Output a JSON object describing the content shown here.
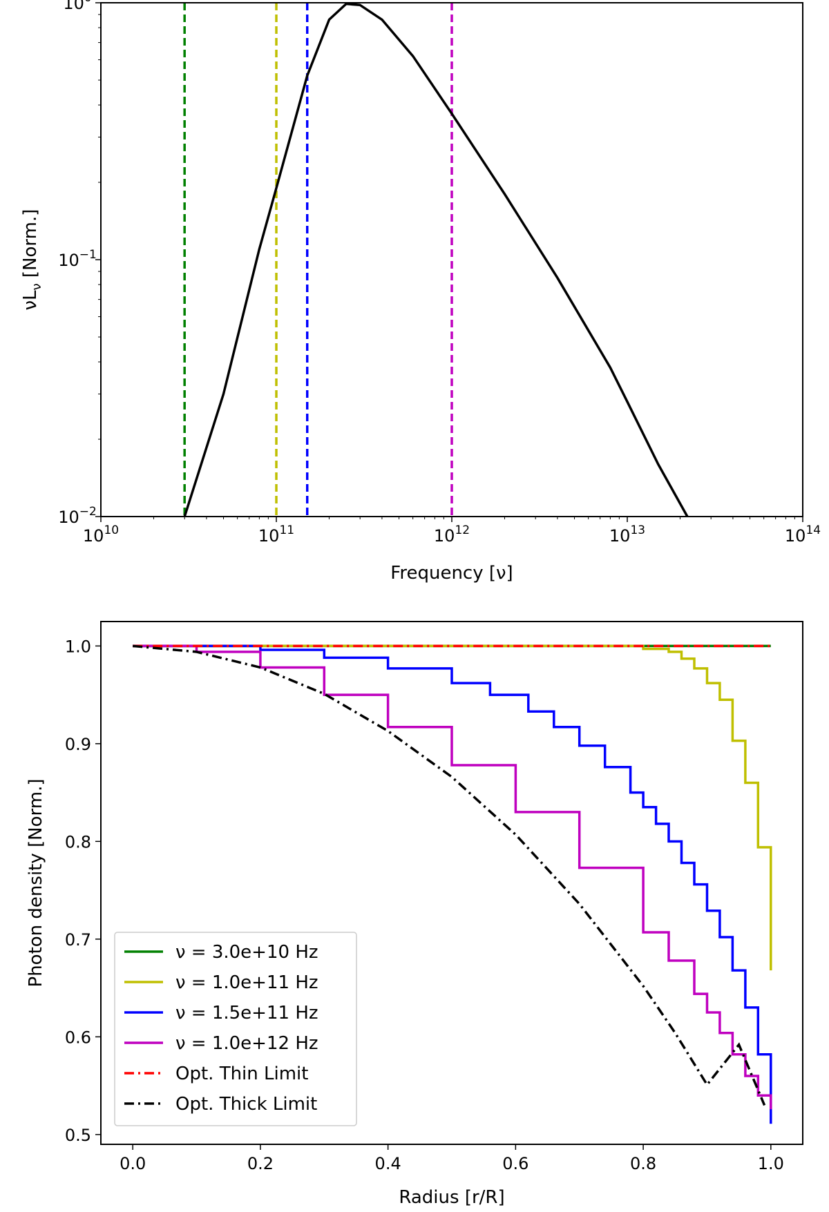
{
  "chart_data": [
    {
      "type": "line",
      "xlabel": "Frequency [ν]",
      "ylabel_prefix": "νL",
      "ylabel_sub": "ν",
      "ylabel_suffix": " [Norm.]",
      "xscale": "log",
      "yscale": "log",
      "xlim": [
        10000000000.0,
        100000000000000.0
      ],
      "ylim": [
        0.01,
        1.0
      ],
      "x_ticks": [
        {
          "value": 10000000000.0,
          "base": "10",
          "exp": "10"
        },
        {
          "value": 100000000000.0,
          "base": "10",
          "exp": "11"
        },
        {
          "value": 1000000000000.0,
          "base": "10",
          "exp": "12"
        },
        {
          "value": 10000000000000.0,
          "base": "10",
          "exp": "13"
        },
        {
          "value": 100000000000000.0,
          "base": "10",
          "exp": "14"
        }
      ],
      "y_ticks": [
        {
          "value": 0.01,
          "base": "10",
          "exp": "−2"
        },
        {
          "value": 0.1,
          "base": "10",
          "exp": "−1"
        },
        {
          "value": 1.0,
          "base": "10",
          "exp": "0"
        }
      ],
      "spectrum": {
        "color": "#000000",
        "x": [
          30000000000.0,
          50000000000.0,
          80000000000.0,
          100000000000.0,
          150000000000.0,
          200000000000.0,
          250000000000.0,
          300000000000.0,
          400000000000.0,
          600000000000.0,
          1000000000000.0,
          2000000000000.0,
          4000000000000.0,
          8000000000000.0,
          10000000000000.0,
          15000000000000.0,
          22000000000000.0
        ],
        "y": [
          0.01,
          0.03,
          0.11,
          0.19,
          0.52,
          0.86,
          0.99,
          0.98,
          0.86,
          0.62,
          0.37,
          0.18,
          0.085,
          0.038,
          0.028,
          0.016,
          0.01
        ]
      },
      "vlines": [
        {
          "x": 30000000000.0,
          "color": "#008000"
        },
        {
          "x": 100000000000.0,
          "color": "#bfbf00"
        },
        {
          "x": 150000000000.0,
          "color": "#0000ff"
        },
        {
          "x": 1000000000000.0,
          "color": "#bf00bf"
        }
      ]
    },
    {
      "type": "line",
      "xlabel": "Radius [r/R]",
      "ylabel": "Photon density [Norm.]",
      "xlim": [
        -0.05,
        1.05
      ],
      "ylim": [
        0.49,
        1.025
      ],
      "x_ticks": [
        {
          "value": 0.0,
          "label": "0.0"
        },
        {
          "value": 0.2,
          "label": "0.2"
        },
        {
          "value": 0.4,
          "label": "0.4"
        },
        {
          "value": 0.6,
          "label": "0.6"
        },
        {
          "value": 0.8,
          "label": "0.8"
        },
        {
          "value": 1.0,
          "label": "1.0"
        }
      ],
      "y_ticks": [
        {
          "value": 0.5,
          "label": "0.5"
        },
        {
          "value": 0.6,
          "label": "0.6"
        },
        {
          "value": 0.7,
          "label": "0.7"
        },
        {
          "value": 0.8,
          "label": "0.8"
        },
        {
          "value": 0.9,
          "label": "0.9"
        },
        {
          "value": 1.0,
          "label": "1.0"
        }
      ],
      "legend_position": "lower-left",
      "series": [
        {
          "name": "ν = 3.0e+10 Hz",
          "color": "#008000",
          "style": "step",
          "x": [
            0.0,
            1.0
          ],
          "y": [
            1.0,
            1.0
          ]
        },
        {
          "name": "ν = 1.0e+11 Hz",
          "color": "#bfbf00",
          "style": "step",
          "x": [
            0.0,
            0.8,
            0.84,
            0.86,
            0.88,
            0.9,
            0.92,
            0.94,
            0.96,
            0.98,
            1.0
          ],
          "y": [
            1.0,
            0.997,
            0.994,
            0.987,
            0.977,
            0.962,
            0.945,
            0.903,
            0.86,
            0.794,
            0.668
          ]
        },
        {
          "name": "ν = 1.5e+11 Hz",
          "color": "#0000ff",
          "style": "step",
          "x": [
            0.0,
            0.2,
            0.3,
            0.4,
            0.5,
            0.56,
            0.62,
            0.66,
            0.7,
            0.74,
            0.78,
            0.8,
            0.82,
            0.84,
            0.86,
            0.88,
            0.9,
            0.92,
            0.94,
            0.96,
            0.98,
            1.0
          ],
          "y": [
            1.0,
            0.996,
            0.988,
            0.977,
            0.962,
            0.95,
            0.933,
            0.917,
            0.898,
            0.876,
            0.85,
            0.835,
            0.818,
            0.8,
            0.778,
            0.756,
            0.729,
            0.702,
            0.668,
            0.63,
            0.582,
            0.511
          ]
        },
        {
          "name": "ν = 1.0e+12 Hz",
          "color": "#bf00bf",
          "style": "step",
          "x": [
            0.0,
            0.1,
            0.2,
            0.3,
            0.4,
            0.5,
            0.6,
            0.7,
            0.8,
            0.84,
            0.88,
            0.9,
            0.92,
            0.94,
            0.96,
            0.98,
            1.0
          ],
          "y": [
            1.0,
            0.994,
            0.978,
            0.95,
            0.917,
            0.878,
            0.83,
            0.773,
            0.707,
            0.678,
            0.644,
            0.625,
            0.604,
            0.582,
            0.56,
            0.54,
            0.526
          ]
        },
        {
          "name": "Opt. Thin Limit",
          "color": "#ff0000",
          "style": "dashdot",
          "x": [
            0.0,
            1.0
          ],
          "y": [
            1.0,
            1.0
          ]
        },
        {
          "name": "Opt. Thick Limit",
          "color": "#000000",
          "style": "dashdot",
          "x": [
            0.0,
            0.1,
            0.2,
            0.3,
            0.4,
            0.5,
            0.6,
            0.7,
            0.8,
            0.85,
            0.9,
            0.95,
            0.99
          ],
          "y": [
            1.0,
            0.994,
            0.978,
            0.951,
            0.913,
            0.866,
            0.807,
            0.736,
            0.652,
            0.604,
            0.551,
            0.592,
            0.53
          ]
        }
      ]
    }
  ]
}
